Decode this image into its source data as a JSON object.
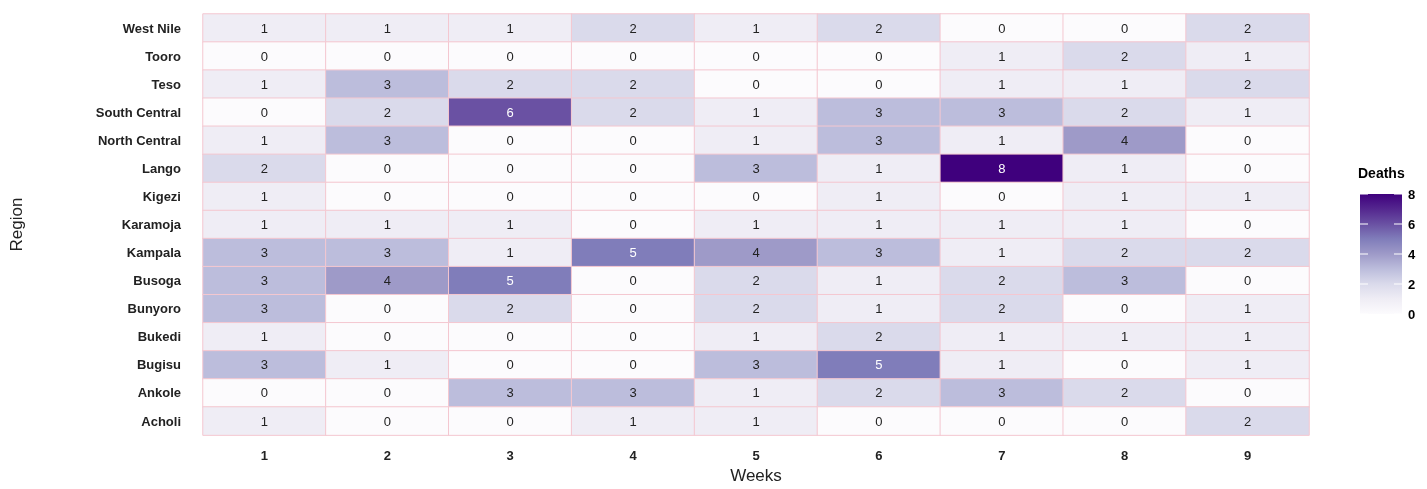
{
  "chart_data": {
    "type": "heatmap",
    "xlabel": "Weeks",
    "ylabel": "Region",
    "clabel": "Deaths",
    "categories": [
      "1",
      "2",
      "3",
      "4",
      "5",
      "6",
      "7",
      "8",
      "9"
    ],
    "y_categories": [
      "West Nile",
      "Tooro",
      "Teso",
      "South Central",
      "North Central",
      "Lango",
      "Kigezi",
      "Karamoja",
      "Kampala",
      "Busoga",
      "Bunyoro",
      "Bukedi",
      "Bugisu",
      "Ankole",
      "Acholi"
    ],
    "cells": [
      [
        1,
        1,
        1,
        2,
        1,
        2,
        0,
        0,
        2
      ],
      [
        0,
        0,
        0,
        0,
        0,
        0,
        1,
        2,
        1
      ],
      [
        1,
        3,
        2,
        2,
        0,
        0,
        1,
        1,
        2
      ],
      [
        0,
        2,
        6,
        2,
        1,
        3,
        3,
        2,
        1
      ],
      [
        1,
        3,
        0,
        0,
        1,
        3,
        1,
        4,
        0
      ],
      [
        2,
        0,
        0,
        0,
        3,
        1,
        8,
        1,
        0
      ],
      [
        1,
        0,
        0,
        0,
        0,
        1,
        0,
        1,
        1
      ],
      [
        1,
        1,
        1,
        0,
        1,
        1,
        1,
        1,
        0
      ],
      [
        3,
        3,
        1,
        5,
        4,
        3,
        1,
        2,
        2
      ],
      [
        3,
        4,
        5,
        0,
        2,
        1,
        2,
        3,
        0
      ],
      [
        3,
        0,
        2,
        0,
        2,
        1,
        2,
        0,
        1
      ],
      [
        1,
        0,
        0,
        0,
        1,
        2,
        1,
        1,
        1
      ],
      [
        3,
        1,
        0,
        0,
        3,
        5,
        1,
        0,
        1
      ],
      [
        0,
        0,
        3,
        3,
        1,
        2,
        3,
        2,
        0
      ],
      [
        1,
        0,
        0,
        1,
        1,
        0,
        0,
        0,
        2
      ]
    ],
    "data_labels": true,
    "clim": [
      0,
      8
    ],
    "cticks": [
      0,
      2,
      4,
      6,
      8
    ]
  }
}
